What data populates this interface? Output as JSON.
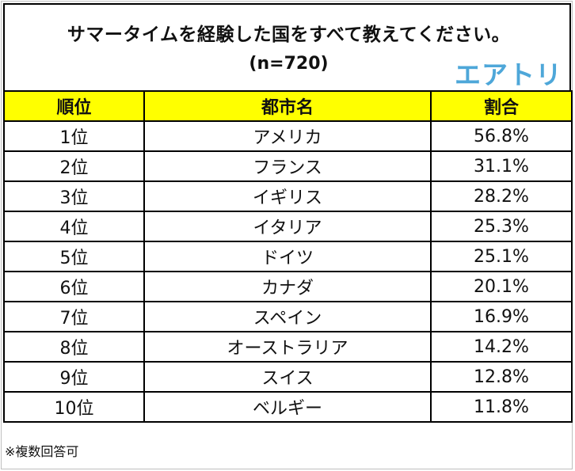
{
  "title": "サマータイムを経験した国をすべて教えてください。",
  "subtitle": "(n=720)",
  "logo_text": "エアトリ",
  "colors": {
    "header_bg": "#ffff00",
    "logo": "#4ea7d9",
    "border": "#000000"
  },
  "table": {
    "headers": [
      "順位",
      "都市名",
      "割合"
    ],
    "rows": [
      [
        "1位",
        "アメリカ",
        "56.8%"
      ],
      [
        "2位",
        "フランス",
        "31.1%"
      ],
      [
        "3位",
        "イギリス",
        "28.2%"
      ],
      [
        "4位",
        "イタリア",
        "25.3%"
      ],
      [
        "5位",
        "ドイツ",
        "25.1%"
      ],
      [
        "6位",
        "カナダ",
        "20.1%"
      ],
      [
        "7位",
        "スペイン",
        "16.9%"
      ],
      [
        "8位",
        "オーストラリア",
        "14.2%"
      ],
      [
        "9位",
        "スイス",
        "12.8%"
      ],
      [
        "10位",
        "ベルギー",
        "11.8%"
      ]
    ]
  },
  "note": "※複数回答可",
  "chart_data": {
    "type": "table",
    "title": "サマータイムを経験した国をすべて教えてください。",
    "subtitle": "(n=720)",
    "columns": [
      "順位",
      "都市名",
      "割合"
    ],
    "categories": [
      "アメリカ",
      "フランス",
      "イギリス",
      "イタリア",
      "ドイツ",
      "カナダ",
      "スペイン",
      "オーストラリア",
      "スイス",
      "ベルギー"
    ],
    "values": [
      56.8,
      31.1,
      28.2,
      25.3,
      25.1,
      20.1,
      16.9,
      14.2,
      12.8,
      11.8
    ]
  }
}
